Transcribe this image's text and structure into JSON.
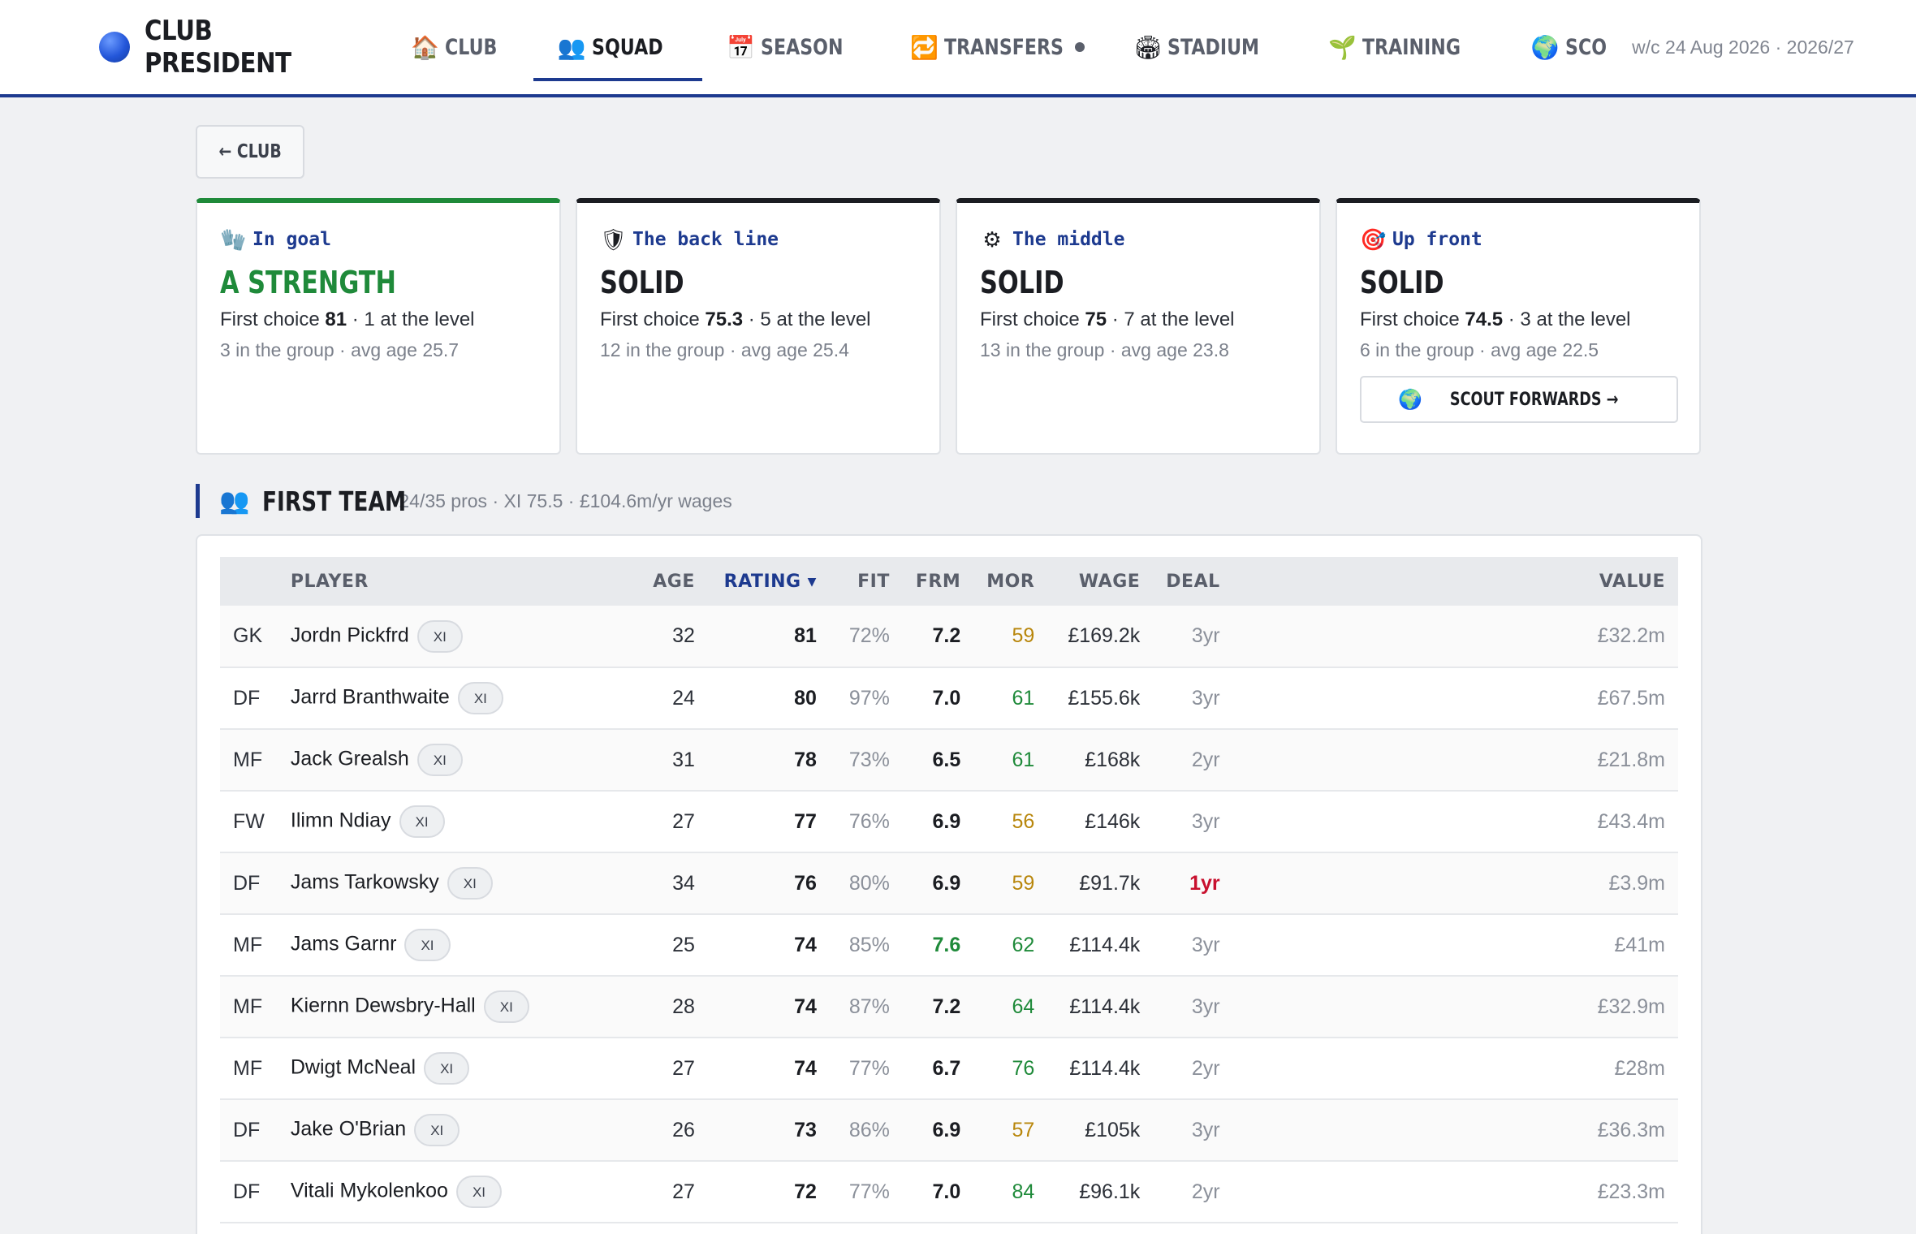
{
  "brand": {
    "title": "CLUB PRESIDENT"
  },
  "nav": [
    {
      "id": "club",
      "icon": "🏠",
      "icon_name": "house-icon",
      "label": "CLUB",
      "active": false,
      "dot": false
    },
    {
      "id": "squad",
      "icon": "👥",
      "icon_name": "people-icon",
      "label": "SQUAD",
      "active": true,
      "dot": false
    },
    {
      "id": "season",
      "icon": "📅",
      "icon_name": "calendar-icon",
      "label": "SEASON",
      "active": false,
      "dot": false
    },
    {
      "id": "transfers",
      "icon": "🔁",
      "icon_name": "repeat-icon",
      "label": "TRANSFERS",
      "active": false,
      "dot": true
    },
    {
      "id": "stadium",
      "icon": "🏟",
      "icon_name": "stadium-icon",
      "label": "STADIUM",
      "active": false,
      "dot": false
    },
    {
      "id": "training",
      "icon": "🌱",
      "icon_name": "seedling-icon",
      "label": "TRAINING",
      "active": false,
      "dot": false
    },
    {
      "id": "scout",
      "icon": "🌍",
      "icon_name": "globe-icon",
      "label": "SCO",
      "active": false,
      "dot": false
    }
  ],
  "nav_meta": "w/c 24 Aug 2026 · 2026/27",
  "back_label": "← CLUB",
  "cards": [
    {
      "icon": "🧤",
      "icon_name": "goalkeeper-glove-icon",
      "kicker": "In goal",
      "verdict": "A STRENGTH",
      "strong": true,
      "first_choice_label": "First choice ",
      "first_choice": "81",
      "level_text": " · 1 at the level",
      "line2": "3 in the group · avg age 25.7"
    },
    {
      "icon": "🛡",
      "icon_name": "shield-icon",
      "kicker": "The back line",
      "verdict": "SOLID",
      "strong": false,
      "first_choice_label": "First choice ",
      "first_choice": "75.3",
      "level_text": " · 5 at the level",
      "line2": "12 in the group · avg age 25.4"
    },
    {
      "icon": "⚙",
      "icon_name": "gear-icon",
      "kicker": "The middle",
      "verdict": "SOLID",
      "strong": false,
      "first_choice_label": "First choice ",
      "first_choice": "75",
      "level_text": " · 7 at the level",
      "line2": "13 in the group · avg age 23.8"
    },
    {
      "icon": "🎯",
      "icon_name": "target-icon",
      "kicker": "Up front",
      "verdict": "SOLID",
      "strong": false,
      "first_choice_label": "First choice ",
      "first_choice": "74.5",
      "level_text": " · 3 at the level",
      "line2": "6 in the group · avg age 22.5",
      "button": {
        "icon": "🌍",
        "icon_name": "globe-icon",
        "label": "SCOUT FORWARDS →"
      }
    }
  ],
  "section": {
    "icon": "👥",
    "icon_name": "people-icon",
    "title": "FIRST TEAM",
    "meta": "24/35 pros · XI 75.5 · £104.6m/yr wages"
  },
  "table": {
    "headers": {
      "player": "PLAYER",
      "age": "AGE",
      "rating": "RATING",
      "rating_arrow": "▼",
      "fit": "FIT",
      "frm": "FRM",
      "mor": "MOR",
      "wage": "WAGE",
      "deal": "DEAL",
      "value": "VALUE"
    },
    "rows": [
      {
        "pos": "GK",
        "name": "Jordn Pickfrd",
        "tag": "XI",
        "age": "32",
        "rating": "81",
        "fit": "72%",
        "frm": "7.2",
        "frm_hot": false,
        "mor": "59",
        "mor_level": "mid",
        "wage": "£169.2k",
        "deal": "3yr",
        "deal_warn": false,
        "value": "£32.2m"
      },
      {
        "pos": "DF",
        "name": "Jarrd Branthwaite",
        "tag": "XI",
        "age": "24",
        "rating": "80",
        "fit": "97%",
        "frm": "7.0",
        "frm_hot": false,
        "mor": "61",
        "mor_level": "good",
        "wage": "£155.6k",
        "deal": "3yr",
        "deal_warn": false,
        "value": "£67.5m"
      },
      {
        "pos": "MF",
        "name": "Jack Grealsh",
        "tag": "XI",
        "age": "31",
        "rating": "78",
        "fit": "73%",
        "frm": "6.5",
        "frm_hot": false,
        "mor": "61",
        "mor_level": "good",
        "wage": "£168k",
        "deal": "2yr",
        "deal_warn": false,
        "value": "£21.8m"
      },
      {
        "pos": "FW",
        "name": "Ilimn Ndiay",
        "tag": "XI",
        "age": "27",
        "rating": "77",
        "fit": "76%",
        "frm": "6.9",
        "frm_hot": false,
        "mor": "56",
        "mor_level": "mid",
        "wage": "£146k",
        "deal": "3yr",
        "deal_warn": false,
        "value": "£43.4m"
      },
      {
        "pos": "DF",
        "name": "Jams Tarkowsky",
        "tag": "XI",
        "age": "34",
        "rating": "76",
        "fit": "80%",
        "frm": "6.9",
        "frm_hot": false,
        "mor": "59",
        "mor_level": "mid",
        "wage": "£91.7k",
        "deal": "1yr",
        "deal_warn": true,
        "value": "£3.9m"
      },
      {
        "pos": "MF",
        "name": "Jams Garnr",
        "tag": "XI",
        "age": "25",
        "rating": "74",
        "fit": "85%",
        "frm": "7.6",
        "frm_hot": true,
        "mor": "62",
        "mor_level": "good",
        "wage": "£114.4k",
        "deal": "3yr",
        "deal_warn": false,
        "value": "£41m"
      },
      {
        "pos": "MF",
        "name": "Kiernn Dewsbry-Hall",
        "tag": "XI",
        "age": "28",
        "rating": "74",
        "fit": "87%",
        "frm": "7.2",
        "frm_hot": false,
        "mor": "64",
        "mor_level": "good",
        "wage": "£114.4k",
        "deal": "3yr",
        "deal_warn": false,
        "value": "£32.9m"
      },
      {
        "pos": "MF",
        "name": "Dwigt McNeal",
        "tag": "XI",
        "age": "27",
        "rating": "74",
        "fit": "77%",
        "frm": "6.7",
        "frm_hot": false,
        "mor": "76",
        "mor_level": "good",
        "wage": "£114.4k",
        "deal": "2yr",
        "deal_warn": false,
        "value": "£28m"
      },
      {
        "pos": "DF",
        "name": "Jake O'Brian",
        "tag": "XI",
        "age": "26",
        "rating": "73",
        "fit": "86%",
        "frm": "6.9",
        "frm_hot": false,
        "mor": "57",
        "mor_level": "mid",
        "wage": "£105k",
        "deal": "3yr",
        "deal_warn": false,
        "value": "£36.3m"
      },
      {
        "pos": "DF",
        "name": "Vitali Mykolenkoo",
        "tag": "XI",
        "age": "27",
        "rating": "72",
        "fit": "77%",
        "frm": "7.0",
        "frm_hot": false,
        "mor": "84",
        "mor_level": "good",
        "wage": "£96.1k",
        "deal": "2yr",
        "deal_warn": false,
        "value": "£23.3m"
      }
    ]
  }
}
